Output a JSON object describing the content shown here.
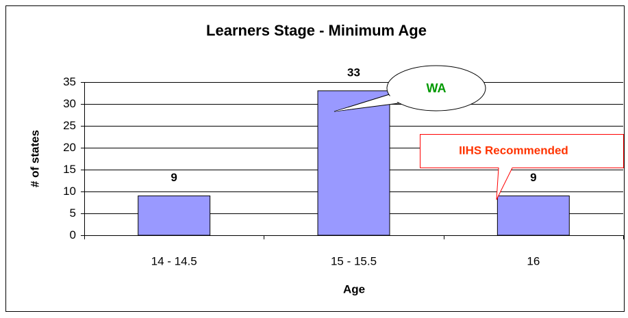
{
  "chart_data": {
    "type": "bar",
    "title": "Learners Stage - Minimum Age",
    "x_label": "Age",
    "y_label": "# of states",
    "categories": [
      "14 - 14.5",
      "15 - 15.5",
      "16"
    ],
    "values": [
      9,
      33,
      9
    ],
    "color": "#9999ff",
    "ylim": [
      0,
      35
    ],
    "yticks": [
      0,
      5,
      10,
      15,
      20,
      25,
      30,
      35
    ],
    "grid": true,
    "annotations": [
      "WA",
      "IIHS Recommended"
    ]
  }
}
